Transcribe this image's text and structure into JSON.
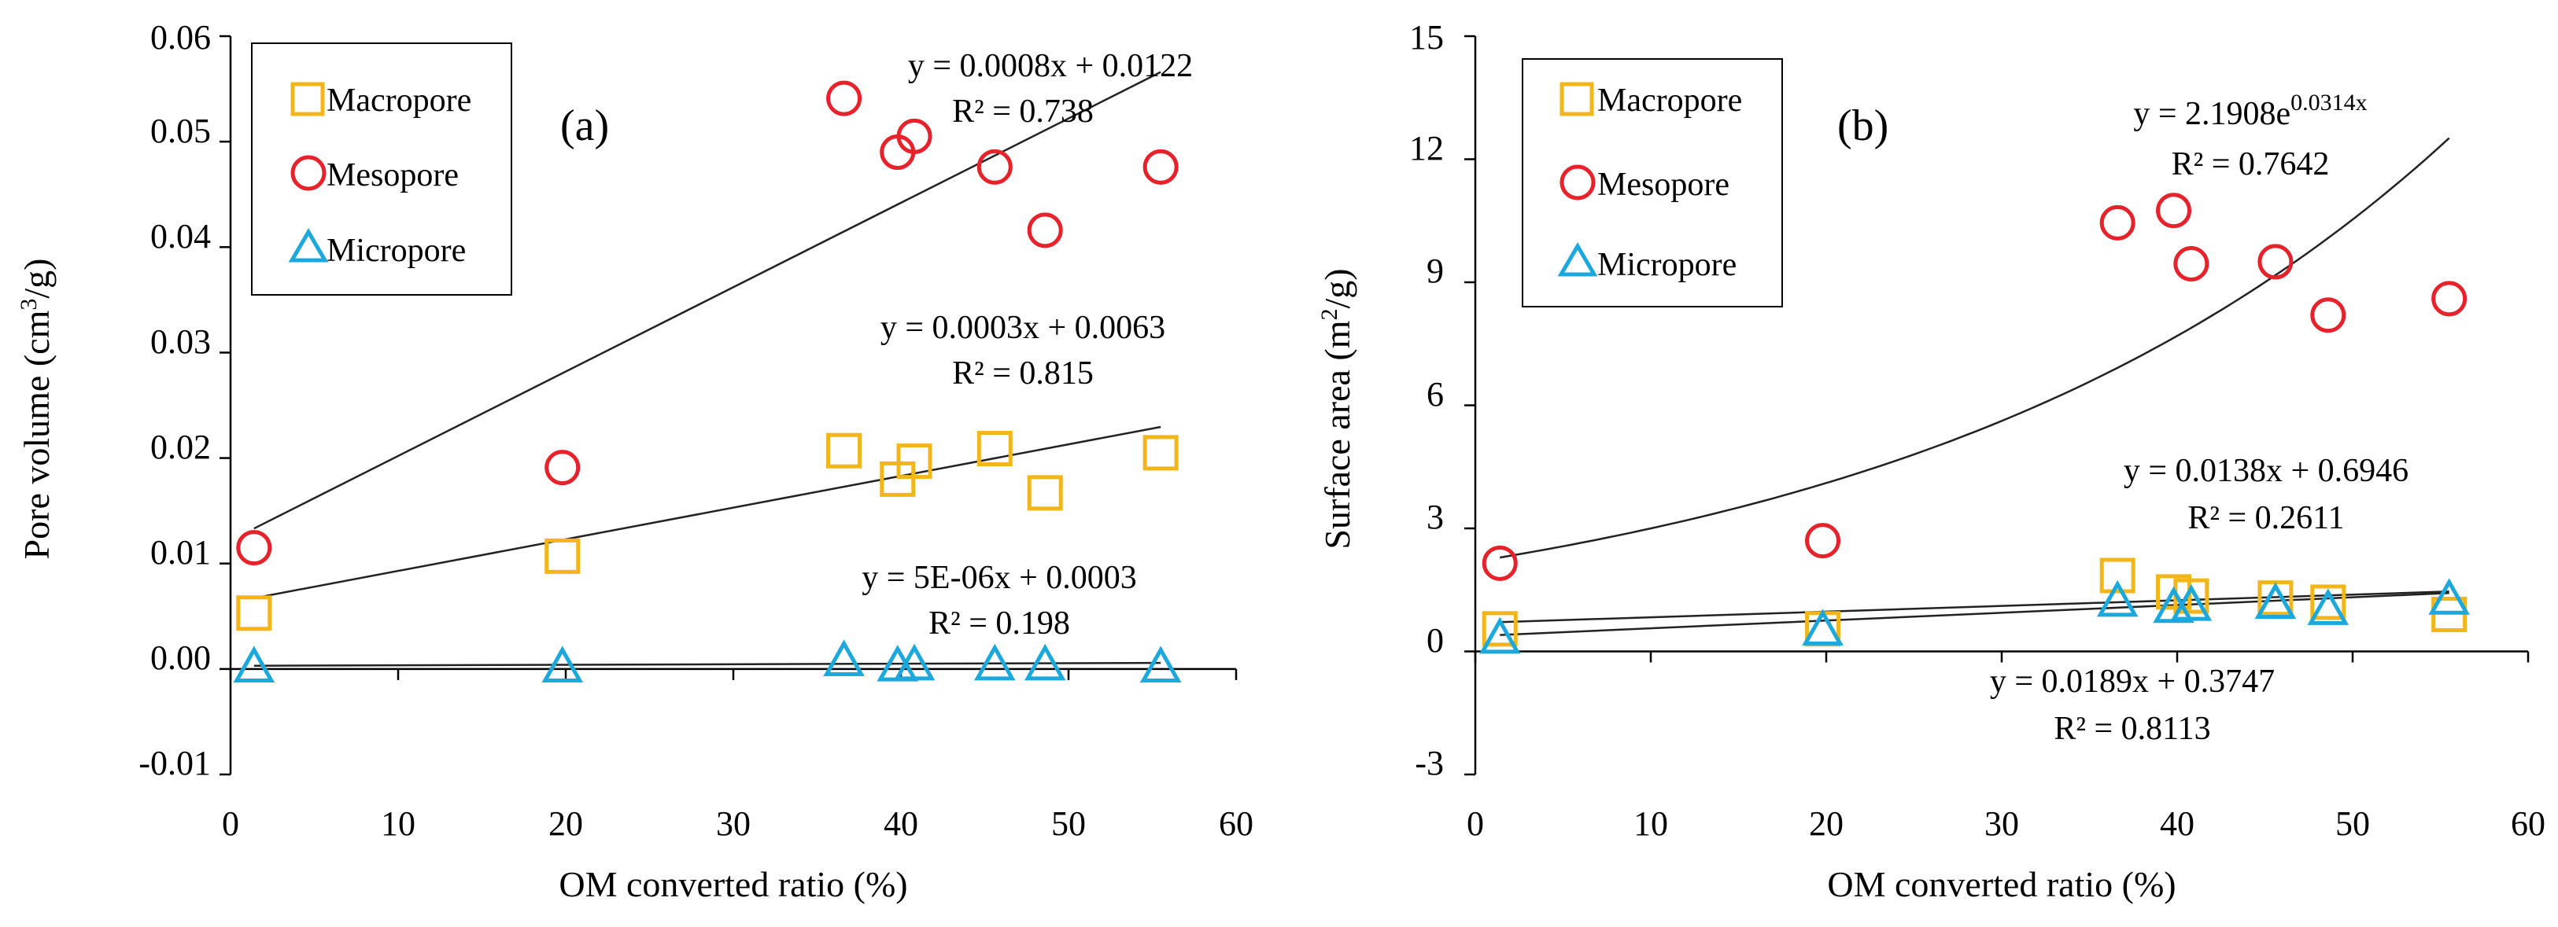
{
  "colors": {
    "macropore": "#F2B51A",
    "mesopore": "#E8222A",
    "micropore": "#1BA8DD",
    "axis": "#000000",
    "fit": "#222222"
  },
  "chart_data": [
    {
      "type": "scatter",
      "panel_label": "(a)",
      "xlabel": "OM converted ratio (%)",
      "ylabel": "Pore volume (cm",
      "ylabel_sup": "3",
      "ylabel_tail": "/g)",
      "xlim": [
        0,
        60
      ],
      "ylim": [
        -0.01,
        0.06
      ],
      "xticks": [
        "0",
        "10",
        "20",
        "30",
        "40",
        "50",
        "60"
      ],
      "yticks": [
        "-0.01",
        "0.00",
        "0.01",
        "0.02",
        "0.03",
        "0.04",
        "0.05",
        "0.06"
      ],
      "legend": [
        "Macropore",
        "Mesopore",
        "Micropore"
      ],
      "series": [
        {
          "name": "Macropore",
          "marker": "square",
          "x": [
            1.4,
            19.8,
            36.6,
            39.8,
            40.8,
            45.6,
            48.6,
            55.5
          ],
          "y": [
            0.0053,
            0.0107,
            0.0207,
            0.018,
            0.0197,
            0.0209,
            0.0167,
            0.0205
          ]
        },
        {
          "name": "Mesopore",
          "marker": "circle",
          "x": [
            1.4,
            19.8,
            36.6,
            39.8,
            40.8,
            45.6,
            48.6,
            55.5
          ],
          "y": [
            0.0115,
            0.0191,
            0.0541,
            0.049,
            0.0505,
            0.0476,
            0.0416,
            0.0476
          ]
        },
        {
          "name": "Micropore",
          "marker": "triangle",
          "x": [
            1.4,
            19.8,
            36.6,
            39.8,
            40.8,
            45.6,
            48.6,
            55.5
          ],
          "y": [
            0.0001,
            0.0001,
            0.0007,
            0.0002,
            0.0003,
            0.0003,
            0.0003,
            0.0001
          ]
        }
      ],
      "fits": [
        {
          "name": "Mesopore",
          "kind": "linear",
          "slope": 0.0008,
          "intercept": 0.0122,
          "x_range": [
            1.4,
            55.5
          ],
          "eq": "y = 0.0008x  + 0.0122",
          "r2": "R² = 0.738"
        },
        {
          "name": "Macropore",
          "kind": "linear",
          "slope": 0.0003,
          "intercept": 0.0063,
          "x_range": [
            1.4,
            55.5
          ],
          "eq": "y = 0.0003x  + 0.0063",
          "r2": "R² = 0.815"
        },
        {
          "name": "Micropore",
          "kind": "linear",
          "slope": 5e-06,
          "intercept": 0.0003,
          "x_range": [
            1.4,
            55.5
          ],
          "eq": "y = 5E-06x  + 0.0003",
          "r2": "R² = 0.198"
        }
      ]
    },
    {
      "type": "scatter",
      "panel_label": "(b)",
      "xlabel": "OM converted ratio (%)",
      "ylabel": "Surface area (m",
      "ylabel_sup": "2",
      "ylabel_tail": "/g)",
      "xlim": [
        0,
        60
      ],
      "ylim": [
        -3,
        15
      ],
      "xticks": [
        "0",
        "10",
        "20",
        "30",
        "40",
        "50",
        "60"
      ],
      "yticks": [
        "-3",
        "0",
        "3",
        "6",
        "9",
        "12",
        "15"
      ],
      "legend": [
        "Macropore",
        "Mesopore",
        "Micropore"
      ],
      "series": [
        {
          "name": "Macropore",
          "marker": "square",
          "x": [
            1.4,
            19.8,
            36.6,
            39.8,
            40.8,
            45.6,
            48.6,
            55.5
          ],
          "y": [
            0.55,
            0.55,
            1.85,
            1.45,
            1.35,
            1.3,
            1.2,
            0.9
          ]
        },
        {
          "name": "Mesopore",
          "marker": "circle",
          "x": [
            1.4,
            19.8,
            36.6,
            39.8,
            40.8,
            45.6,
            48.6,
            55.5
          ],
          "y": [
            2.15,
            2.7,
            10.45,
            10.75,
            9.45,
            9.5,
            8.2,
            8.6
          ]
        },
        {
          "name": "Micropore",
          "marker": "triangle",
          "x": [
            1.4,
            19.8,
            36.6,
            39.8,
            40.8,
            45.6,
            48.6,
            55.5
          ],
          "y": [
            0.3,
            0.5,
            1.2,
            1.05,
            1.1,
            1.15,
            1.0,
            1.25
          ]
        }
      ],
      "fits": [
        {
          "name": "Mesopore",
          "kind": "exponential",
          "a": 2.1908,
          "b": 0.0314,
          "x_range": [
            1.4,
            55.5
          ],
          "eq_base": "y = 2.1908e",
          "eq_exp": "0.0314x",
          "r2": "R² = 0.7642"
        },
        {
          "name": "Macropore",
          "kind": "linear",
          "slope": 0.0138,
          "intercept": 0.6946,
          "x_range": [
            1.4,
            55.5
          ],
          "eq": "y = 0.0138x + 0.6946",
          "r2": "R² = 0.2611"
        },
        {
          "name": "Micropore",
          "kind": "linear",
          "slope": 0.0189,
          "intercept": 0.3747,
          "x_range": [
            1.4,
            55.5
          ],
          "eq": "y = 0.0189x + 0.3747",
          "r2": "R² = 0.8113"
        }
      ]
    }
  ]
}
